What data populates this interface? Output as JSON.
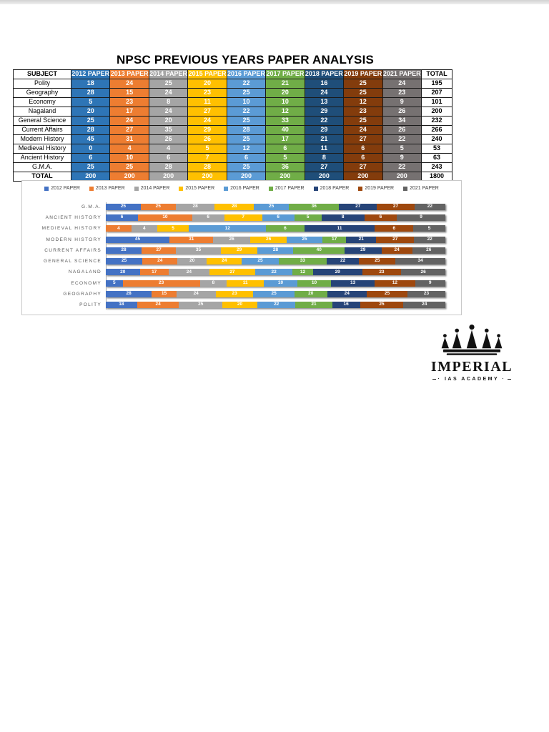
{
  "page": {
    "title": "NPSC PREVIOUS YEARS PAPER ANALYSIS"
  },
  "table": {
    "columns": [
      "SUBJECT",
      "2012 PAPER",
      "2013 PAPER",
      "2014 PAPER",
      "2015 PAPER",
      "2016 PAPER",
      "2017 PAPER",
      "2018 PAPER",
      "2019 PAPER",
      "2021 PAPER",
      "TOTAL"
    ],
    "column_colors": [
      null,
      "#2E75B6",
      "#ED7D31",
      "#A5A5A5",
      "#FFC000",
      "#5B9BD5",
      "#70AD47",
      "#1F4E79",
      "#833C0C",
      "#767171",
      null
    ],
    "rows": [
      {
        "subject": "Polity",
        "values": [
          18,
          24,
          25,
          20,
          22,
          21,
          16,
          25,
          24
        ],
        "total": 195
      },
      {
        "subject": "Geography",
        "values": [
          28,
          15,
          24,
          23,
          25,
          20,
          24,
          25,
          23
        ],
        "total": 207
      },
      {
        "subject": "Economy",
        "values": [
          5,
          23,
          8,
          11,
          10,
          10,
          13,
          12,
          9
        ],
        "total": 101
      },
      {
        "subject": "Nagaland",
        "values": [
          20,
          17,
          24,
          27,
          22,
          12,
          29,
          23,
          26
        ],
        "total": 200
      },
      {
        "subject": "General Science",
        "values": [
          25,
          24,
          20,
          24,
          25,
          33,
          22,
          25,
          34
        ],
        "total": 232
      },
      {
        "subject": "Current Affairs",
        "values": [
          28,
          27,
          35,
          29,
          28,
          40,
          29,
          24,
          26
        ],
        "total": 266
      },
      {
        "subject": "Modern History",
        "values": [
          45,
          31,
          26,
          26,
          25,
          17,
          21,
          27,
          22
        ],
        "total": 240
      },
      {
        "subject": "Medieval History",
        "values": [
          0,
          4,
          4,
          5,
          12,
          6,
          11,
          6,
          5
        ],
        "total": 53
      },
      {
        "subject": "Ancient History",
        "values": [
          6,
          10,
          6,
          7,
          6,
          5,
          8,
          6,
          9
        ],
        "total": 63
      },
      {
        "subject": "G.M.A.",
        "values": [
          25,
          25,
          28,
          28,
          25,
          36,
          27,
          27,
          22
        ],
        "total": 243
      }
    ],
    "total_row": {
      "label": "TOTAL",
      "values": [
        200,
        200,
        200,
        200,
        200,
        200,
        200,
        200,
        200
      ],
      "total": 1800
    }
  },
  "chart_data": {
    "type": "bar",
    "variant": "horizontal-100%-stacked",
    "title": "",
    "legend_position": "top",
    "grid": false,
    "categories": [
      "G.M.A.",
      "ANCIENT HISTORY",
      "MEDIEVAL HISTORY",
      "MODERN HISTORY",
      "CURRENT AFFAIRS",
      "GENERAL SCIENCE",
      "NAGALAND",
      "ECONOMY",
      "GEOGRAPHY",
      "POLITY"
    ],
    "series": [
      {
        "name": "2012 PAPER",
        "color": "#4472C4",
        "values": [
          25,
          6,
          0,
          45,
          28,
          25,
          20,
          5,
          28,
          18
        ]
      },
      {
        "name": "2013 PAPER",
        "color": "#ED7D31",
        "values": [
          25,
          10,
          4,
          31,
          27,
          24,
          17,
          23,
          15,
          24
        ]
      },
      {
        "name": "2014 PAPER",
        "color": "#A5A5A5",
        "values": [
          28,
          6,
          4,
          26,
          35,
          20,
          24,
          8,
          24,
          25
        ]
      },
      {
        "name": "2015 PAPER",
        "color": "#FFC000",
        "values": [
          28,
          7,
          5,
          26,
          29,
          24,
          27,
          11,
          23,
          20
        ]
      },
      {
        "name": "2016 PAPER",
        "color": "#5B9BD5",
        "values": [
          25,
          6,
          12,
          25,
          28,
          25,
          22,
          10,
          25,
          22
        ]
      },
      {
        "name": "2017 PAPER",
        "color": "#70AD47",
        "values": [
          36,
          5,
          6,
          17,
          40,
          33,
          12,
          10,
          20,
          21
        ]
      },
      {
        "name": "2018 PAPER",
        "color": "#264478",
        "values": [
          27,
          8,
          11,
          21,
          29,
          22,
          29,
          13,
          24,
          16
        ]
      },
      {
        "name": "2019 PAPER",
        "color": "#9E480E",
        "values": [
          27,
          6,
          6,
          27,
          24,
          25,
          23,
          12,
          25,
          25
        ]
      },
      {
        "name": "2021 PAPER",
        "color": "#636363",
        "values": [
          22,
          9,
          5,
          22,
          26,
          34,
          26,
          9,
          23,
          24
        ]
      }
    ]
  },
  "logo": {
    "name": "IMPERIAL",
    "subtitle": "IAS ACADEMY"
  }
}
